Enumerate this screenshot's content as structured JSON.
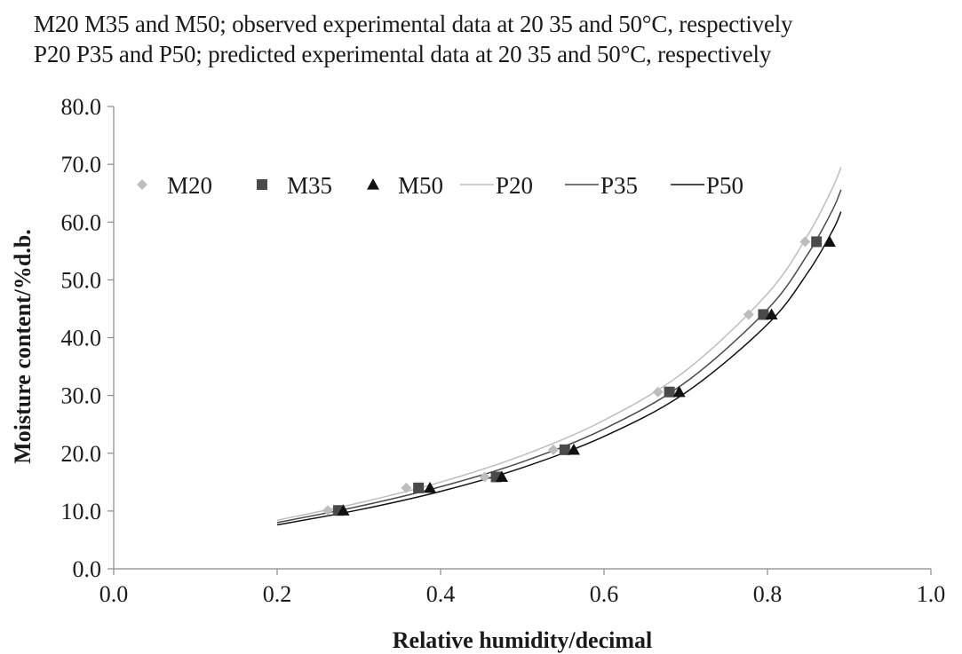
{
  "notes": {
    "line1": "M20 M35 and M50; observed experimental data at 20 35 and 50°C, respectively",
    "line2": "P20 P35 and P50; predicted experimental data at 20 35 and 50°C, respectively"
  },
  "chart_data": {
    "type": "scatter",
    "xlabel": "Relative humidity/decimal",
    "ylabel": "Moisture content/%d.b.",
    "xlim": [
      0.0,
      1.0
    ],
    "ylim": [
      0.0,
      80.0
    ],
    "x_ticks": [
      "0.0",
      "0.2",
      "0.4",
      "0.6",
      "0.8",
      "1.0"
    ],
    "y_ticks": [
      "0.0",
      "10.0",
      "20.0",
      "30.0",
      "40.0",
      "50.0",
      "60.0",
      "70.0",
      "80.0"
    ],
    "grid": false,
    "legend_position": "top-left",
    "series": [
      {
        "name": "M20",
        "kind": "marker",
        "marker": "diamond",
        "color": "#bdbdbd",
        "points": [
          [
            0.262,
            10.1
          ],
          [
            0.358,
            14.0
          ],
          [
            0.454,
            15.9
          ],
          [
            0.538,
            20.6
          ],
          [
            0.666,
            30.6
          ],
          [
            0.777,
            44.0
          ],
          [
            0.846,
            56.6
          ]
        ]
      },
      {
        "name": "M35",
        "kind": "marker",
        "marker": "square",
        "color": "#4a4a4a",
        "points": [
          [
            0.275,
            10.1
          ],
          [
            0.373,
            14.0
          ],
          [
            0.468,
            15.9
          ],
          [
            0.552,
            20.6
          ],
          [
            0.68,
            30.6
          ],
          [
            0.795,
            44.0
          ],
          [
            0.86,
            56.6
          ]
        ]
      },
      {
        "name": "M50",
        "kind": "marker",
        "marker": "triangle",
        "color": "#111111",
        "points": [
          [
            0.281,
            10.1
          ],
          [
            0.387,
            14.0
          ],
          [
            0.475,
            15.9
          ],
          [
            0.563,
            20.6
          ],
          [
            0.692,
            30.6
          ],
          [
            0.805,
            44.0
          ],
          [
            0.876,
            56.6
          ]
        ]
      },
      {
        "name": "P20",
        "kind": "line",
        "color": "#bdbdbd",
        "points": [
          [
            0.2,
            8.4
          ],
          [
            0.3,
            11.4
          ],
          [
            0.4,
            15.0
          ],
          [
            0.5,
            19.6
          ],
          [
            0.6,
            25.7
          ],
          [
            0.7,
            34.3
          ],
          [
            0.8,
            47.6
          ],
          [
            0.85,
            57.9
          ],
          [
            0.88,
            66.0
          ],
          [
            0.89,
            69.5
          ]
        ]
      },
      {
        "name": "P35",
        "kind": "line",
        "color": "#4a4a4a",
        "points": [
          [
            0.2,
            8.0
          ],
          [
            0.3,
            10.8
          ],
          [
            0.4,
            14.2
          ],
          [
            0.5,
            18.5
          ],
          [
            0.6,
            24.2
          ],
          [
            0.7,
            32.3
          ],
          [
            0.8,
            44.9
          ],
          [
            0.85,
            54.6
          ],
          [
            0.88,
            62.2
          ],
          [
            0.89,
            65.6
          ]
        ]
      },
      {
        "name": "P50",
        "kind": "line",
        "color": "#111111",
        "points": [
          [
            0.2,
            7.6
          ],
          [
            0.3,
            10.2
          ],
          [
            0.4,
            13.4
          ],
          [
            0.5,
            17.5
          ],
          [
            0.6,
            22.9
          ],
          [
            0.7,
            30.5
          ],
          [
            0.8,
            42.3
          ],
          [
            0.85,
            51.4
          ],
          [
            0.88,
            58.6
          ],
          [
            0.89,
            61.8
          ]
        ]
      }
    ]
  }
}
